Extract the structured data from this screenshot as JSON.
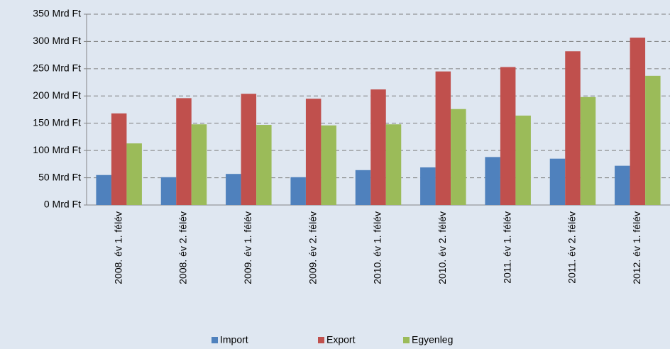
{
  "chart_data": {
    "type": "bar",
    "categories": [
      "2008. év 1. félév",
      "2008. év 2. félév",
      "2009. év 1. félév",
      "2009. év 2. félév",
      "2010. év 1. félév",
      "2010. év 2. félév",
      "2011. év 1. félév",
      "2011. év 2. félév",
      "2012. év 1. félév"
    ],
    "series": [
      {
        "name": "Import",
        "color": "#4f81bd",
        "values": [
          55,
          51,
          57,
          51,
          64,
          69,
          88,
          85,
          72
        ]
      },
      {
        "name": "Export",
        "color": "#c0504d",
        "values": [
          168,
          196,
          204,
          195,
          212,
          245,
          253,
          282,
          307
        ]
      },
      {
        "name": "Egyenleg",
        "color": "#9bbb59",
        "values": [
          113,
          148,
          147,
          146,
          148,
          176,
          164,
          198,
          237
        ]
      }
    ],
    "ylim": [
      0,
      350
    ],
    "yticks": [
      {
        "value": 0,
        "label": "0 Mrd Ft"
      },
      {
        "value": 50,
        "label": "50 Mrd Ft"
      },
      {
        "value": 100,
        "label": "100 Mrd Ft"
      },
      {
        "value": 150,
        "label": "150 Mrd Ft"
      },
      {
        "value": 200,
        "label": "200 Mrd Ft"
      },
      {
        "value": 250,
        "label": "250 Mrd Ft"
      },
      {
        "value": 300,
        "label": "300 Mrd Ft"
      },
      {
        "value": 350,
        "label": "350 Mrd Ft"
      }
    ],
    "grid": true,
    "legend": "bottom"
  }
}
